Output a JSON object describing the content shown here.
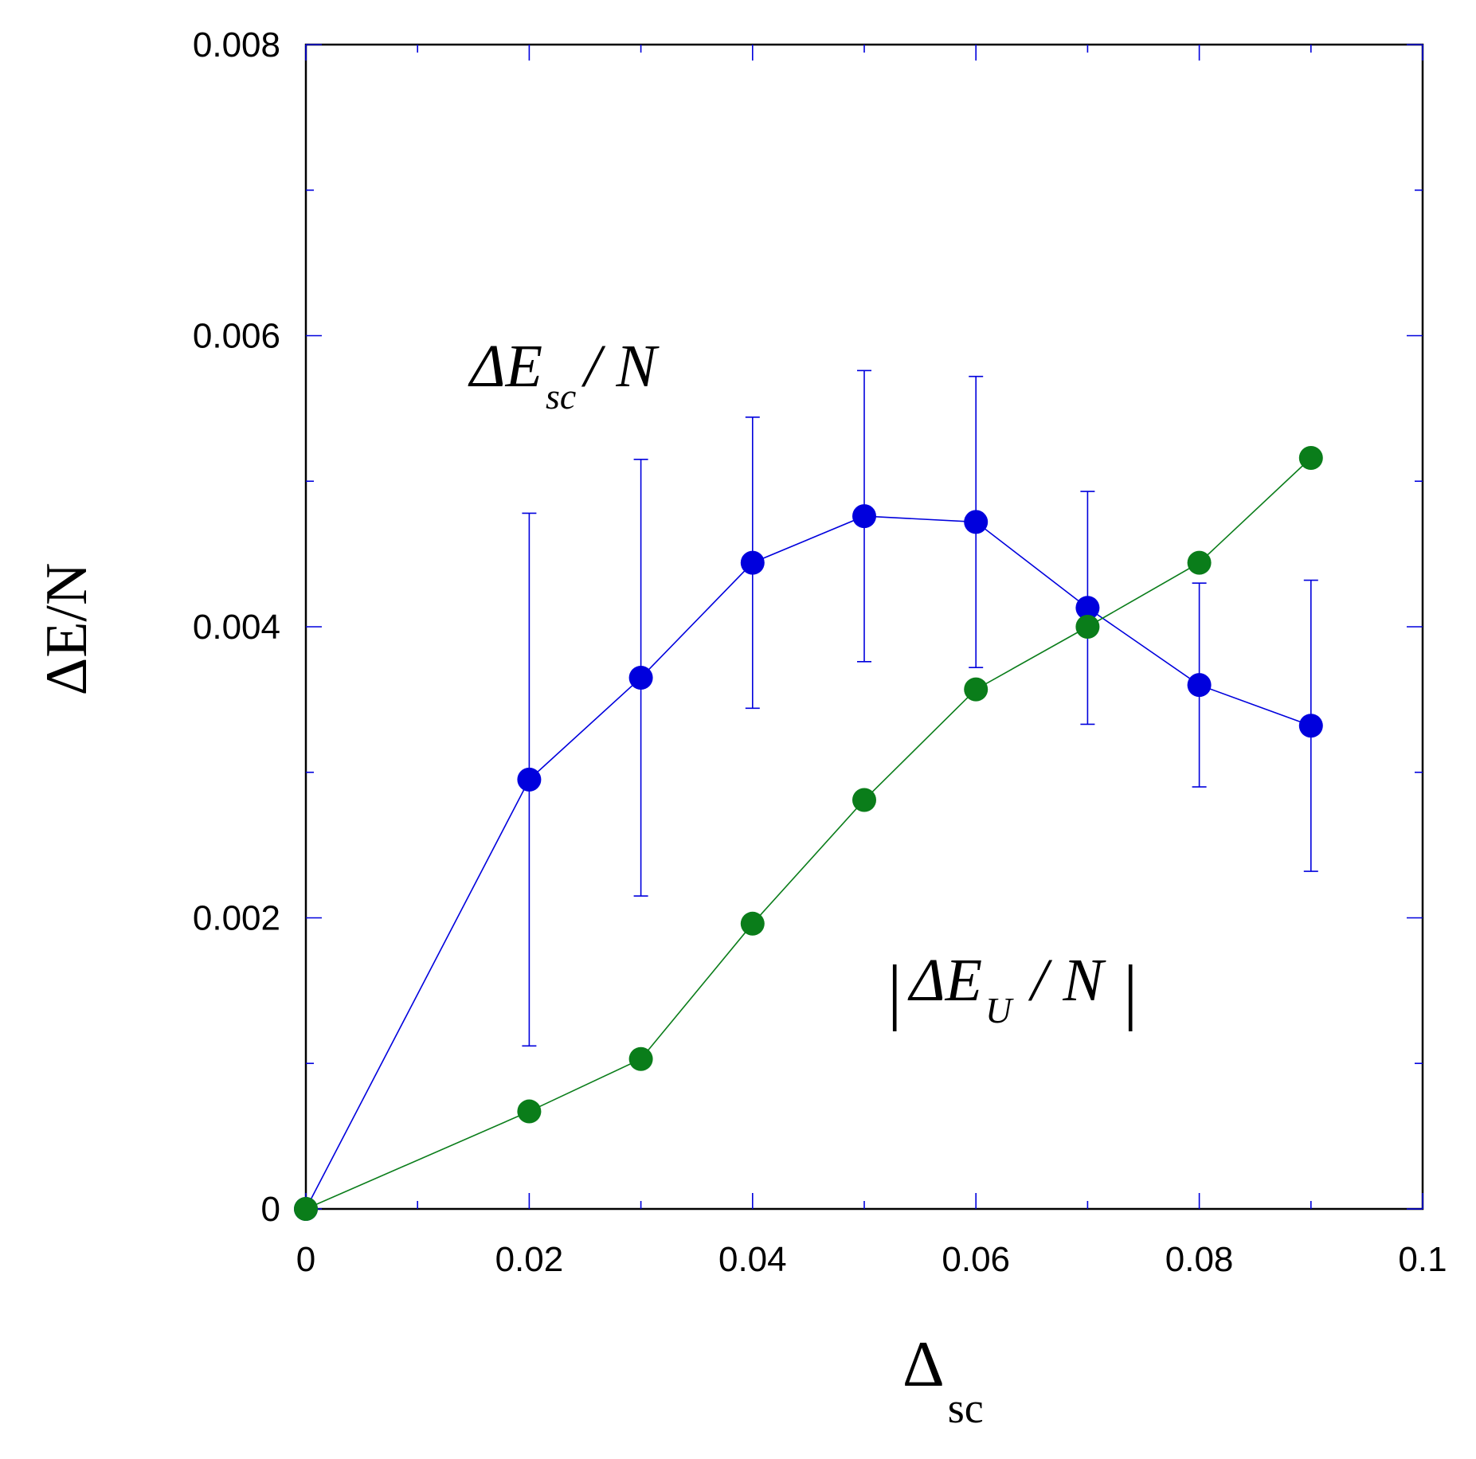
{
  "chart_data": {
    "type": "line",
    "xlabel": {
      "main": "Δ",
      "sub": "sc"
    },
    "ylabel": "ΔE/N",
    "xlim": [
      0,
      0.1
    ],
    "ylim": [
      0,
      0.008
    ],
    "x_ticks": [
      0,
      0.02,
      0.04,
      0.06,
      0.08,
      0.1
    ],
    "x_tick_labels": [
      "0",
      "0.02",
      "0.04",
      "0.06",
      "0.08",
      "0.1"
    ],
    "x_minor_ticks": [
      0.01,
      0.03,
      0.05,
      0.07,
      0.09
    ],
    "y_ticks": [
      0,
      0.002,
      0.004,
      0.006,
      0.008
    ],
    "y_tick_labels": [
      "0",
      "0.002",
      "0.004",
      "0.006",
      "0.008"
    ],
    "y_minor_ticks": [
      0.001,
      0.003,
      0.005,
      0.007
    ],
    "grid": false,
    "series": [
      {
        "color": "#0000dd",
        "marker": "circle",
        "x": [
          0,
          0.02,
          0.03,
          0.04,
          0.05,
          0.06,
          0.07,
          0.08,
          0.09
        ],
        "y": [
          0,
          0.00295,
          0.00365,
          0.00444,
          0.00476,
          0.00472,
          0.00413,
          0.0036,
          0.00332
        ],
        "error": [
          0,
          0.00183,
          0.0015,
          0.001,
          0.001,
          0.001,
          0.0008,
          0.0007,
          0.001
        ]
      },
      {
        "color": "#0a7d1a",
        "marker": "circle",
        "x": [
          0,
          0.02,
          0.03,
          0.04,
          0.05,
          0.06,
          0.07,
          0.08,
          0.09
        ],
        "y": [
          0,
          0.00067,
          0.00103,
          0.00196,
          0.00281,
          0.00357,
          0.004,
          0.00444,
          0.00516
        ]
      }
    ],
    "annotations": [
      {
        "main": "ΔE",
        "sub": "sc",
        "rest": "/ N",
        "color": "#000000"
      },
      {
        "main": "ΔE",
        "sub": "U",
        "rest": "/ N",
        "bars": "|",
        "color": "#000000"
      }
    ]
  }
}
